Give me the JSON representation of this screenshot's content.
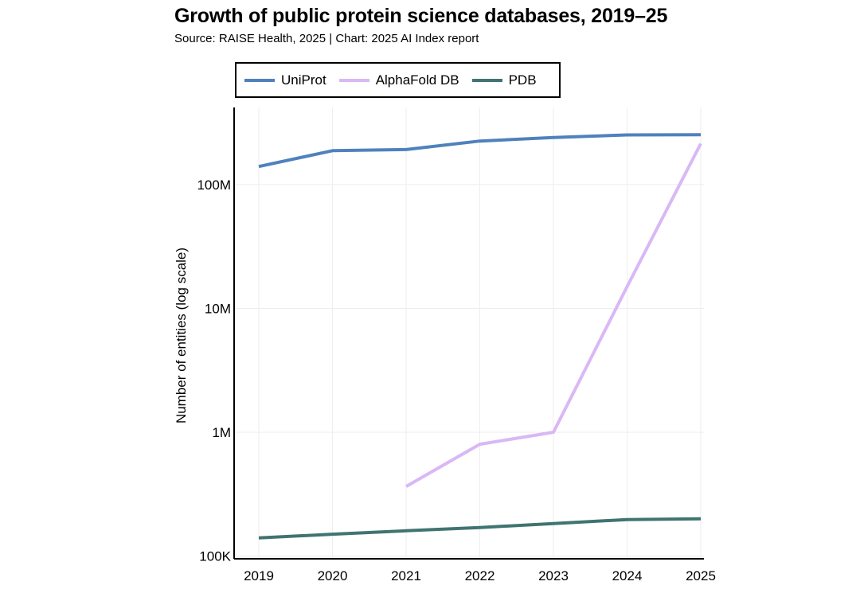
{
  "title": "Growth of public protein science databases, 2019–25",
  "subtitle": "Source: RAISE Health, 2025 | Chart: 2025 AI Index report",
  "colors": {
    "uniprot": "#4f81bd",
    "alphafold": "#d9b8f5",
    "pdb": "#3f7471",
    "axis": "#000000",
    "grid": "#eeeeee"
  },
  "chart_data": {
    "type": "line",
    "title": "Growth of public protein science databases, 2019–25",
    "ylabel": "Number of entities (log scale)",
    "xlabel": "",
    "y_scale": "log",
    "ylim": [
      95000,
      420000000
    ],
    "grid": true,
    "legend_position": "top",
    "x": [
      2019,
      2020,
      2021,
      2022,
      2023,
      2024,
      2025
    ],
    "y_ticks": [
      {
        "value": 100000,
        "label": "100K"
      },
      {
        "value": 1000000,
        "label": "1M"
      },
      {
        "value": 10000000,
        "label": "10M"
      },
      {
        "value": 100000000,
        "label": "100M"
      }
    ],
    "series": [
      {
        "name": "UniProt",
        "color": "#4f81bd",
        "values": [
          140000000,
          188000000,
          192000000,
          225000000,
          240000000,
          252000000,
          253000000
        ]
      },
      {
        "name": "AlphaFold DB",
        "color": "#d9b8f5",
        "values": [
          null,
          null,
          365000,
          800000,
          1000000,
          15000000,
          214000000
        ]
      },
      {
        "name": "PDB",
        "color": "#3f7471",
        "values": [
          140000,
          150000,
          160000,
          170000,
          183000,
          197000,
          200000
        ]
      }
    ]
  }
}
